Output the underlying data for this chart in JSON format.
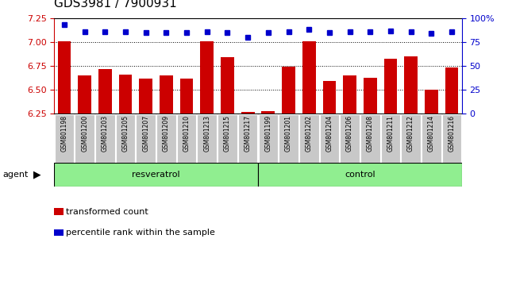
{
  "title": "GDS3981 / 7900931",
  "samples": [
    "GSM801198",
    "GSM801200",
    "GSM801203",
    "GSM801205",
    "GSM801207",
    "GSM801209",
    "GSM801210",
    "GSM801213",
    "GSM801215",
    "GSM801217",
    "GSM801199",
    "GSM801201",
    "GSM801202",
    "GSM801204",
    "GSM801206",
    "GSM801208",
    "GSM801211",
    "GSM801212",
    "GSM801214",
    "GSM801216"
  ],
  "groups": [
    "resveratrol",
    "resveratrol",
    "resveratrol",
    "resveratrol",
    "resveratrol",
    "resveratrol",
    "resveratrol",
    "resveratrol",
    "resveratrol",
    "resveratrol",
    "control",
    "control",
    "control",
    "control",
    "control",
    "control",
    "control",
    "control",
    "control",
    "control"
  ],
  "transformed_count": [
    7.005,
    6.655,
    6.72,
    6.66,
    6.615,
    6.655,
    6.615,
    7.005,
    6.845,
    6.27,
    6.275,
    6.745,
    7.005,
    6.595,
    6.655,
    6.625,
    6.825,
    6.855,
    6.505,
    6.735
  ],
  "percentile_rank": [
    93,
    86,
    86,
    86,
    85,
    85,
    85,
    86,
    85,
    80,
    85,
    86,
    88,
    85,
    86,
    86,
    87,
    86,
    84,
    86
  ],
  "ylim_left": [
    6.25,
    7.25
  ],
  "ylim_right": [
    0,
    100
  ],
  "yticks_left": [
    6.25,
    6.5,
    6.75,
    7.0,
    7.25
  ],
  "yticks_right": [
    0,
    25,
    50,
    75,
    100
  ],
  "ytick_labels_right": [
    "0",
    "25",
    "50",
    "75",
    "100%"
  ],
  "bar_color": "#cc0000",
  "dot_color": "#0000cc",
  "bar_bottom": 6.25,
  "resveratrol_color": "#90EE90",
  "control_color": "#90EE90",
  "left_tick_color": "#cc0000",
  "right_tick_color": "#0000cc",
  "title_fontsize": 11,
  "agent_label": "agent",
  "legend_bar_label": "transformed count",
  "legend_dot_label": "percentile rank within the sample",
  "grid_lines": [
    6.5,
    6.75,
    7.0
  ],
  "cell_color": "#c8c8c8",
  "cell_edge_color": "#ffffff"
}
